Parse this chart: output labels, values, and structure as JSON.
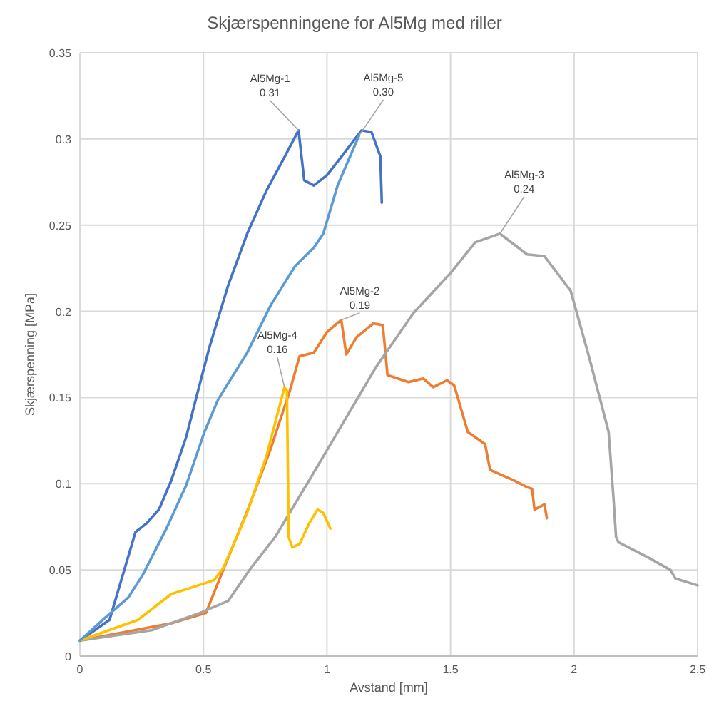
{
  "chart_data": {
    "type": "line",
    "title": "Skjærspenningene for Al5Mg med riller",
    "xlabel": "Avstand [mm]",
    "ylabel": "Skjærspenning [MPa]",
    "xlim": [
      0,
      2.5
    ],
    "xticks": [
      0,
      0.5,
      1,
      1.5,
      2,
      2.5
    ],
    "ylim": [
      0,
      0.35
    ],
    "yticks": [
      0,
      0.05,
      0.1,
      0.15,
      0.2,
      0.25,
      0.3,
      0.35
    ],
    "grid": true,
    "marker": "none",
    "line_style": "solid",
    "series": [
      {
        "color": "#4472c4",
        "x": [
          0,
          0.12,
          0.225,
          0.27,
          0.32,
          0.37,
          0.43,
          0.48,
          0.524,
          0.6,
          0.677,
          0.755,
          0.83,
          0.885,
          0.908,
          0.947,
          1.0,
          1.06,
          1.14,
          1.18,
          1.216,
          1.222
        ],
        "values": [
          0.009,
          0.021,
          0.072,
          0.077,
          0.085,
          0.102,
          0.127,
          0.155,
          0.179,
          0.215,
          0.245,
          0.27,
          0.29,
          0.305,
          0.276,
          0.273,
          0.279,
          0.29,
          0.305,
          0.304,
          0.29,
          0.263
        ]
      },
      {
        "color": "#ed7d31",
        "x": [
          0,
          0.37,
          0.51,
          0.58,
          0.68,
          0.774,
          0.85,
          0.889,
          0.947,
          1.0,
          1.058,
          1.078,
          1.12,
          1.188,
          1.226,
          1.245,
          1.33,
          1.39,
          1.43,
          1.486,
          1.515,
          1.57,
          1.64,
          1.66,
          1.755,
          1.81,
          1.83,
          1.84,
          1.88,
          1.89
        ],
        "values": [
          0.009,
          0.019,
          0.025,
          0.05,
          0.085,
          0.121,
          0.154,
          0.174,
          0.176,
          0.188,
          0.195,
          0.175,
          0.185,
          0.193,
          0.192,
          0.163,
          0.159,
          0.161,
          0.156,
          0.16,
          0.157,
          0.13,
          0.123,
          0.108,
          0.102,
          0.098,
          0.097,
          0.085,
          0.088,
          0.08
        ]
      },
      {
        "color": "#a5a5a5",
        "x": [
          0,
          0.29,
          0.485,
          0.6,
          0.697,
          0.79,
          0.928,
          1.06,
          1.2,
          1.35,
          1.505,
          1.6,
          1.7,
          1.81,
          1.88,
          1.986,
          2.06,
          2.14,
          2.16,
          2.17,
          2.18,
          2.29,
          2.39,
          2.41,
          2.5
        ],
        "values": [
          0.009,
          0.015,
          0.025,
          0.032,
          0.052,
          0.069,
          0.102,
          0.134,
          0.168,
          0.199,
          0.223,
          0.24,
          0.245,
          0.233,
          0.232,
          0.212,
          0.174,
          0.13,
          0.091,
          0.069,
          0.066,
          0.058,
          0.05,
          0.045,
          0.041
        ]
      },
      {
        "color": "#ffc000",
        "x": [
          0,
          0.235,
          0.37,
          0.543,
          0.58,
          0.677,
          0.755,
          0.828,
          0.838,
          0.845,
          0.86,
          0.889,
          0.928,
          0.962,
          0.985,
          1.014
        ],
        "values": [
          0.009,
          0.021,
          0.036,
          0.044,
          0.051,
          0.083,
          0.116,
          0.156,
          0.154,
          0.069,
          0.063,
          0.065,
          0.077,
          0.085,
          0.083,
          0.074
        ]
      },
      {
        "color": "#5b9bd5",
        "x": [
          0,
          0.1,
          0.196,
          0.254,
          0.35,
          0.43,
          0.504,
          0.56,
          0.677,
          0.774,
          0.87,
          0.947,
          0.985,
          1.043,
          1.13
        ],
        "values": [
          0.009,
          0.022,
          0.034,
          0.047,
          0.074,
          0.099,
          0.13,
          0.149,
          0.176,
          0.204,
          0.226,
          0.237,
          0.245,
          0.273,
          0.302
        ]
      }
    ],
    "annotations": [
      {
        "text": "Al5Mg-1\n0.31",
        "x": 0.885,
        "y": 0.305
      },
      {
        "text": "Al5Mg-2\n0.19",
        "x": 1.058,
        "y": 0.195
      },
      {
        "text": "Al5Mg-3\n0.24",
        "x": 1.7,
        "y": 0.245
      },
      {
        "text": "Al5Mg-4\n0.16",
        "x": 0.828,
        "y": 0.156
      },
      {
        "text": "Al5Mg-5\n0.30",
        "x": 1.13,
        "y": 0.302
      }
    ]
  }
}
